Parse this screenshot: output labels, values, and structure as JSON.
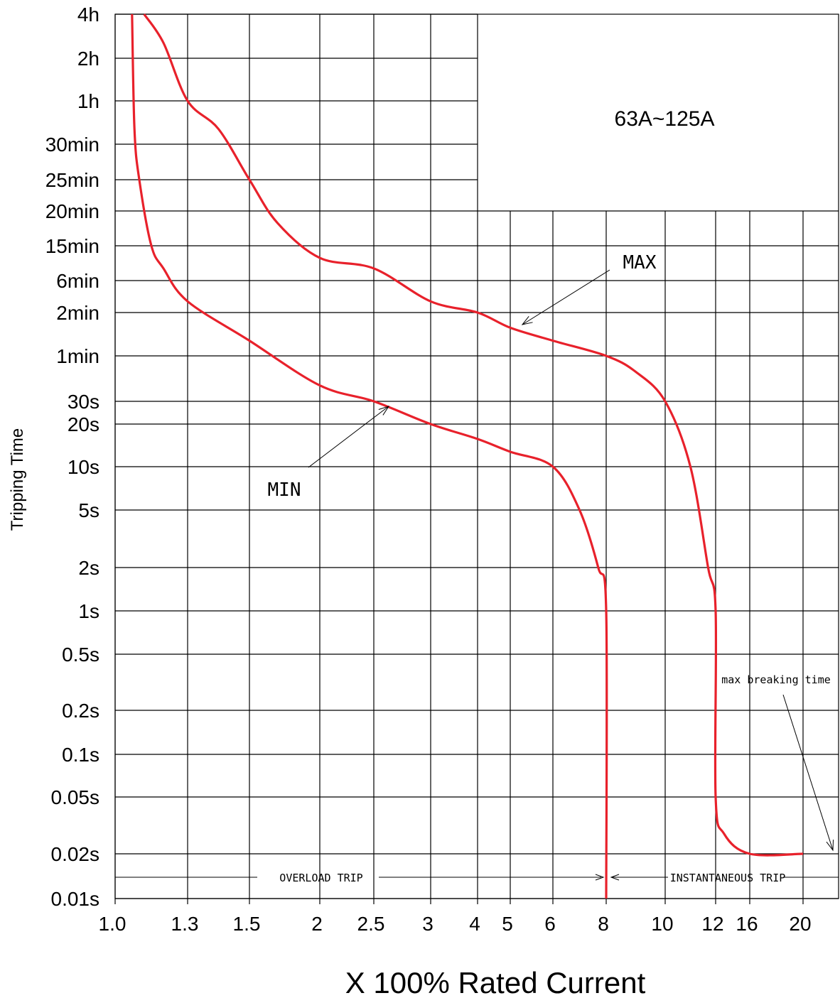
{
  "chart_data": {
    "type": "line",
    "title": "63A~125A",
    "xlabel": "X 100% Rated Current",
    "ylabel": "Tripping Time",
    "x_tick_labels": [
      "1.0",
      "1.3",
      "1.5",
      "2",
      "2.5",
      "3",
      "4",
      "5",
      "6",
      "8",
      "10",
      "12",
      "16",
      "20"
    ],
    "y_tick_labels": [
      "4h",
      "2h",
      "1h",
      "30min",
      "25min",
      "20min",
      "15min",
      "6min",
      "2min",
      "1min",
      "30s",
      "20s",
      "10s",
      "5s",
      "2s",
      "1s",
      "0.5s",
      "0.2s",
      "0.1s",
      "0.05s",
      "0.02s",
      "0.01s"
    ],
    "grid": true,
    "series": [
      {
        "name": "MAX",
        "color": "#e8212b",
        "points": [
          [
            "1.12",
            "4h"
          ],
          [
            "1.2",
            "2h+"
          ],
          [
            "1.3",
            "1h"
          ],
          [
            "1.4",
            "30min+"
          ],
          [
            "1.5",
            "25min"
          ],
          [
            "1.7",
            "20min-"
          ],
          [
            "2",
            "15min-"
          ],
          [
            "2.5",
            "6min+"
          ],
          [
            "3",
            "2min+"
          ],
          [
            "4",
            "2min"
          ],
          [
            "5",
            "2min-"
          ],
          [
            "6",
            "1min+"
          ],
          [
            "8",
            "1min"
          ],
          [
            "9",
            "1min-"
          ],
          [
            "10",
            "30s"
          ],
          [
            "11",
            "10s"
          ],
          [
            "11.7",
            "2s"
          ],
          [
            "12",
            "1s"
          ],
          [
            "12",
            "0.05s"
          ],
          [
            "13",
            "0.02s+"
          ],
          [
            "16",
            "0.02s"
          ],
          [
            "20",
            "0.02s"
          ]
        ]
      },
      {
        "name": "MIN",
        "color": "#e8212b",
        "points": [
          [
            "1.07",
            "4h"
          ],
          [
            "1.08",
            "30min+"
          ],
          [
            "1.1",
            "25min"
          ],
          [
            "1.15",
            "15min"
          ],
          [
            "1.2",
            "6min+"
          ],
          [
            "1.3",
            "2min+"
          ],
          [
            "1.5",
            "1min+"
          ],
          [
            "2",
            "30s+"
          ],
          [
            "2.5",
            "30s"
          ],
          [
            "3",
            "20s"
          ],
          [
            "4",
            "20s-"
          ],
          [
            "5",
            "10s+"
          ],
          [
            "6",
            "10s"
          ],
          [
            "7",
            "5s"
          ],
          [
            "7.7",
            "2s"
          ],
          [
            "8",
            "1s"
          ],
          [
            "8",
            "0.01s"
          ]
        ]
      }
    ],
    "annotations": [
      {
        "text": "MAX",
        "points_to": "MAX curve at 5"
      },
      {
        "text": "MIN",
        "points_to": "MIN curve at 2.5"
      },
      {
        "text": "max breaking time",
        "points_to": "0.02s at 20"
      },
      {
        "text": "OVERLOAD TRIP",
        "range": [
          "1.0",
          "8"
        ]
      },
      {
        "text": "INSTANTANEOUS TRIP",
        "range": [
          "8",
          "20"
        ]
      }
    ]
  }
}
